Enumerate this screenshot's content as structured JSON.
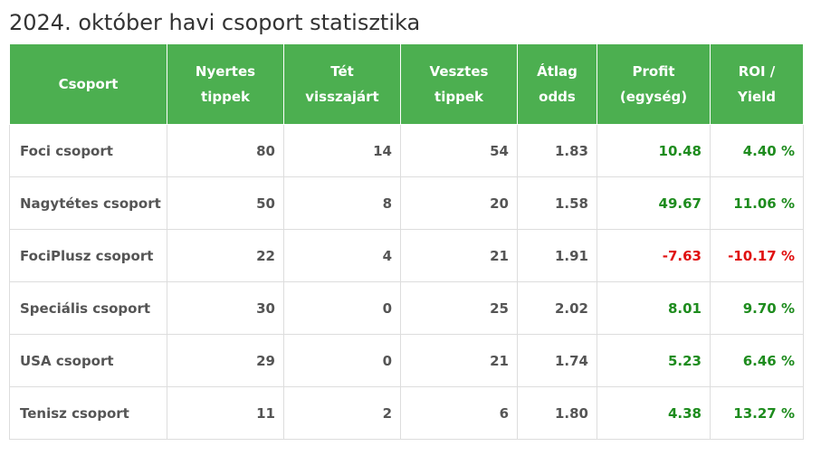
{
  "title": "2024. október havi csoport statisztika",
  "colors": {
    "header_bg": "#4caf50",
    "positive": "#1e8c1e",
    "negative": "#e01010"
  },
  "columns": [
    {
      "line1": "Csoport",
      "line2": ""
    },
    {
      "line1": "Nyertes",
      "line2": "tippek"
    },
    {
      "line1": "Tét",
      "line2": "visszajárt"
    },
    {
      "line1": "Vesztes",
      "line2": "tippek"
    },
    {
      "line1": "Átlag",
      "line2": "odds"
    },
    {
      "line1": "Profit",
      "line2": "(egység)"
    },
    {
      "line1": "ROI /",
      "line2": "Yield"
    }
  ],
  "rows": [
    {
      "name": "Foci csoport",
      "won": "80",
      "refunded": "14",
      "lost": "54",
      "avg_odds": "1.83",
      "profit": "10.48",
      "roi": "4.40 %",
      "positive": true
    },
    {
      "name": "Nagytétes csoport",
      "won": "50",
      "refunded": "8",
      "lost": "20",
      "avg_odds": "1.58",
      "profit": "49.67",
      "roi": "11.06 %",
      "positive": true
    },
    {
      "name": "FociPlusz csoport",
      "won": "22",
      "refunded": "4",
      "lost": "21",
      "avg_odds": "1.91",
      "profit": "-7.63",
      "roi": "-10.17 %",
      "positive": false
    },
    {
      "name": "Speciális csoport",
      "won": "30",
      "refunded": "0",
      "lost": "25",
      "avg_odds": "2.02",
      "profit": "8.01",
      "roi": "9.70 %",
      "positive": true
    },
    {
      "name": "USA csoport",
      "won": "29",
      "refunded": "0",
      "lost": "21",
      "avg_odds": "1.74",
      "profit": "5.23",
      "roi": "6.46 %",
      "positive": true
    },
    {
      "name": "Tenisz csoport",
      "won": "11",
      "refunded": "2",
      "lost": "6",
      "avg_odds": "1.80",
      "profit": "4.38",
      "roi": "13.27 %",
      "positive": true
    }
  ]
}
